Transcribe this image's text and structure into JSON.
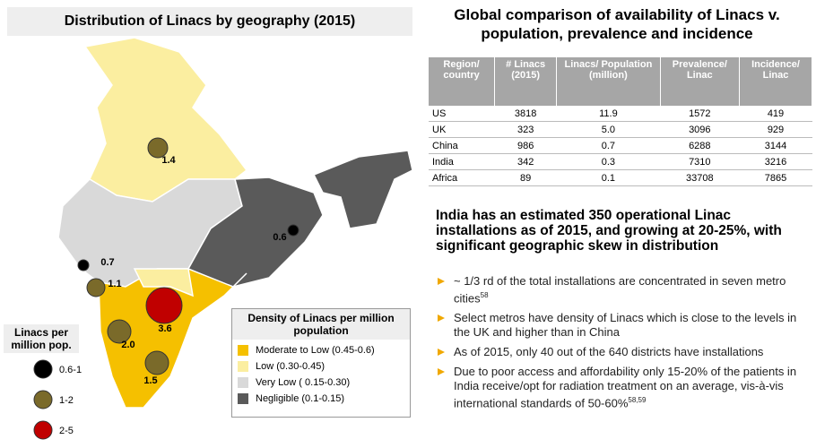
{
  "map": {
    "title": "Distribution of Linacs by geography (2015)",
    "bubble_labels": [
      "1.4",
      "0.6",
      "0.7",
      "1.1",
      "2.0",
      "3.6",
      "1.5"
    ],
    "size_legend": {
      "title": "Linacs per million pop.",
      "items": [
        "0.6-1",
        "1-2",
        "2-5"
      ]
    },
    "density_legend": {
      "title": "Density of Linacs per million population",
      "items": [
        "Moderate to Low (0.45-0.6)",
        "Low (0.30-0.45)",
        "Very Low ( 0.15-0.30)",
        "Negligible (0.1-0.15)"
      ]
    }
  },
  "comparison": {
    "title": "Global comparison of availability of Linacs v. population, prevalence and incidence",
    "table": {
      "header": [
        "Region/ country",
        "# Linacs (2015)",
        "Linacs/ Population (million)",
        "Prevalence/ Linac",
        "Incidence/ Linac"
      ],
      "rows": [
        [
          "US",
          "3818",
          "11.9",
          "1572",
          "419"
        ],
        [
          "UK",
          "323",
          "5.0",
          "3096",
          "929"
        ],
        [
          "China",
          "986",
          "0.7",
          "6288",
          "3144"
        ],
        [
          "India",
          "342",
          "0.3",
          "7310",
          "3216"
        ],
        [
          "Africa",
          "89",
          "0.1",
          "33708",
          "7865"
        ]
      ]
    }
  },
  "summary": {
    "heading": "India has an estimated 350 operational Linac installations as of 2015, and growing at 20-25%, with significant geographic skew in distribution",
    "bullets": [
      {
        "text": "~ 1/3 rd of the total installations are concentrated in seven metro cities",
        "ref": "58"
      },
      {
        "text": "Select metros have density of Linacs which is close to the levels in the UK and higher than in China"
      },
      {
        "text": "As of 2015, only 40 out of the 640 districts have installations"
      },
      {
        "text": "Due to poor access and affordability only 15-20% of the patients in India receive/opt for radiation treatment on an average, vis-à-vis international standards of 50-60%",
        "ref": "58,59"
      }
    ]
  }
}
